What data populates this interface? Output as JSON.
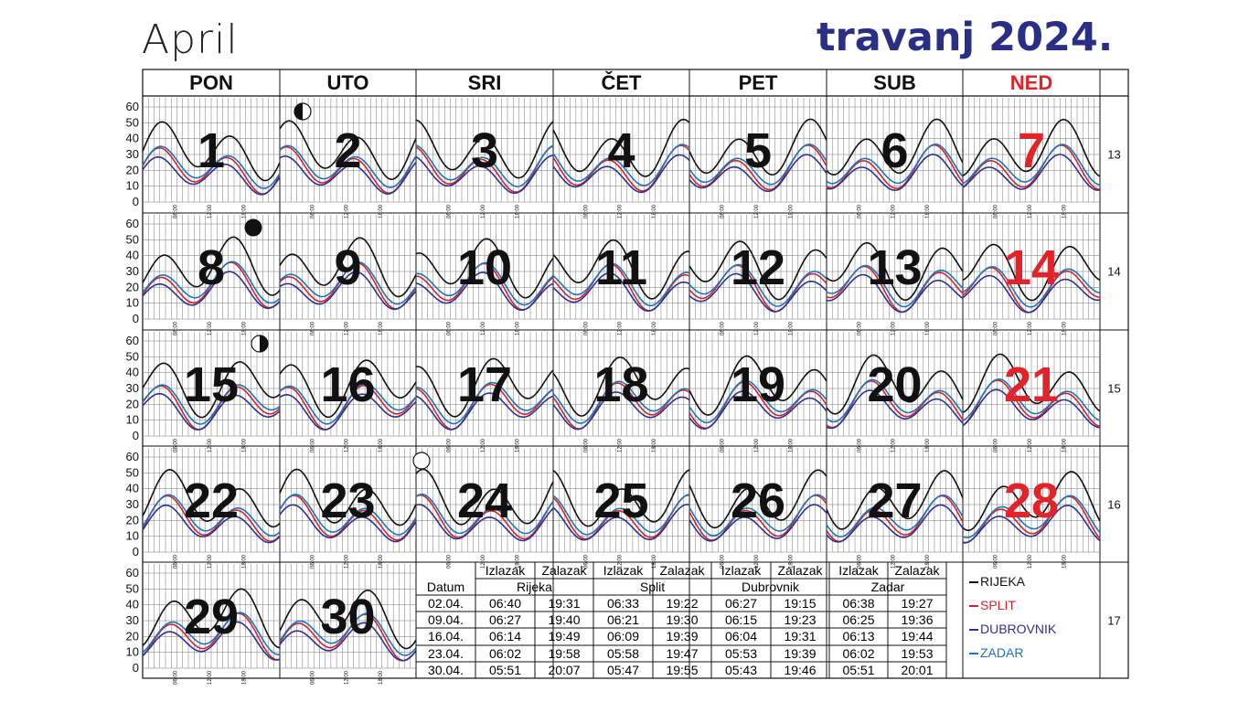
{
  "title_en": "April",
  "title_hr": "travanj 2024.",
  "colors": {
    "sunday": "#e2232a",
    "title": "#2a2f86",
    "rijeka": "#111111",
    "split": "#d8232a",
    "dubrovnik": "#2e3192",
    "zadar": "#1c75bc",
    "grid": "#777777"
  },
  "weekdays": [
    "PON",
    "UTO",
    "SRI",
    "ČET",
    "PET",
    "SUB",
    "NED"
  ],
  "y_ticks": [
    "60",
    "50",
    "40",
    "30",
    "20",
    "10",
    "0"
  ],
  "x_ticks": [
    "06:00",
    "12:00",
    "18:00"
  ],
  "week_numbers": [
    "13",
    "14",
    "15",
    "16",
    "17"
  ],
  "days": [
    [
      "1",
      "2",
      "3",
      "4",
      "5",
      "6",
      "7"
    ],
    [
      "8",
      "9",
      "10",
      "11",
      "12",
      "13",
      "14"
    ],
    [
      "15",
      "16",
      "17",
      "18",
      "19",
      "20",
      "21"
    ],
    [
      "22",
      "23",
      "24",
      "25",
      "26",
      "27",
      "28"
    ],
    [
      "29",
      "30"
    ]
  ],
  "moon_phases": [
    {
      "day": "2",
      "phase": "last-quarter"
    },
    {
      "day": "8",
      "phase": "new-moon"
    },
    {
      "day": "15",
      "phase": "first-quarter"
    },
    {
      "day": "24",
      "phase": "full-moon"
    }
  ],
  "sun_table": {
    "header_row1": [
      "Izlazak",
      "Zalazak",
      "Izlazak",
      "Zalazak",
      "Izlazak",
      "Zalazak",
      "Izlazak",
      "Zalazak"
    ],
    "date_label": "Datum",
    "cities": [
      "Rijeka",
      "Split",
      "Dubrovnik",
      "Zadar"
    ],
    "rows": [
      [
        "02.04.",
        "06:40",
        "19:31",
        "06:33",
        "19:22",
        "06:27",
        "19:15",
        "06:38",
        "19:27"
      ],
      [
        "09.04.",
        "06:27",
        "19:40",
        "06:21",
        "19:30",
        "06:15",
        "19:23",
        "06:25",
        "19:36"
      ],
      [
        "16.04.",
        "06:14",
        "19:49",
        "06:09",
        "19:39",
        "06:04",
        "19:31",
        "06:13",
        "19:44"
      ],
      [
        "23.04.",
        "06:02",
        "19:58",
        "05:58",
        "19:47",
        "05:53",
        "19:39",
        "06:02",
        "19:53"
      ],
      [
        "30.04.",
        "05:51",
        "20:07",
        "05:47",
        "19:55",
        "05:43",
        "19:46",
        "05:51",
        "20:01"
      ]
    ]
  },
  "legend": [
    {
      "label": "RIJEKA",
      "color": "#111111"
    },
    {
      "label": "SPLIT",
      "color": "#d8232a"
    },
    {
      "label": "DUBROVNIK",
      "color": "#2e3192"
    },
    {
      "label": "ZADAR",
      "color": "#1c75bc"
    }
  ]
}
